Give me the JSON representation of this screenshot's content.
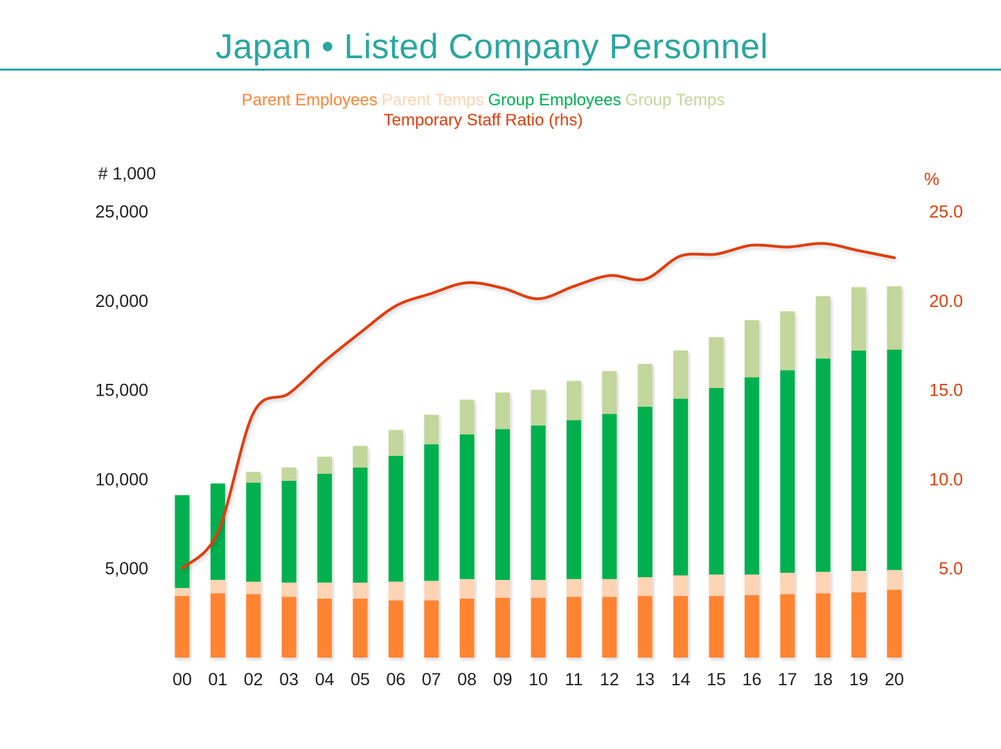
{
  "title": "Japan • Listed Company Personnel",
  "legend": {
    "parent_employees": "Parent Employees",
    "parent_temps": "Parent Temps",
    "group_employees": "Group Employees",
    "group_temps": "Group Temps",
    "ratio": "Temporary Staff Ratio (rhs)"
  },
  "colors": {
    "title": "#2aa6a0",
    "parent_employees": "#ff8432",
    "parent_temps": "#fdd4b4",
    "group_employees": "#00b050",
    "group_temps": "#c3d69b",
    "ratio": "#e03c0c"
  },
  "chart_data": {
    "type": "bar",
    "stacked": true,
    "title": "Japan • Listed Company Personnel",
    "ylabel_left": "# 1,000",
    "ylabel_right": "%",
    "ylim_left": [
      0,
      25000
    ],
    "ylim_right": [
      0,
      25
    ],
    "yticks_left": [
      "5,000",
      "10,000",
      "15,000",
      "20,000",
      "25,000"
    ],
    "yticks_right": [
      "5.0",
      "10.0",
      "15.0",
      "20.0",
      "25.0"
    ],
    "categories": [
      "00",
      "01",
      "02",
      "03",
      "04",
      "05",
      "06",
      "07",
      "08",
      "09",
      "10",
      "11",
      "12",
      "13",
      "14",
      "15",
      "16",
      "17",
      "18",
      "19",
      "20"
    ],
    "series": [
      {
        "name": "Parent Employees",
        "type": "bar",
        "values": [
          3450,
          3600,
          3550,
          3400,
          3300,
          3300,
          3200,
          3200,
          3300,
          3350,
          3350,
          3400,
          3400,
          3450,
          3450,
          3450,
          3500,
          3550,
          3600,
          3650,
          3800
        ]
      },
      {
        "name": "Parent Temps",
        "type": "bar",
        "values": [
          450,
          750,
          700,
          800,
          900,
          900,
          1050,
          1100,
          1100,
          1000,
          1000,
          1000,
          1000,
          1050,
          1150,
          1200,
          1150,
          1200,
          1200,
          1200,
          1100
        ]
      },
      {
        "name": "Group Employees",
        "type": "bar",
        "values": [
          5200,
          5400,
          5550,
          5700,
          6100,
          6450,
          7050,
          7650,
          8100,
          8450,
          8650,
          8900,
          9250,
          9550,
          9900,
          10450,
          11050,
          11350,
          11950,
          12350,
          12350
        ]
      },
      {
        "name": "Group Temps",
        "type": "bar",
        "values": [
          0,
          0,
          600,
          750,
          950,
          1200,
          1450,
          1650,
          1950,
          2050,
          2000,
          2200,
          2400,
          2400,
          2700,
          2850,
          3200,
          3300,
          3500,
          3550,
          3550
        ]
      },
      {
        "name": "Temporary Staff Ratio (rhs)",
        "type": "line",
        "axis": "right",
        "values": [
          5.0,
          7.0,
          13.7,
          14.8,
          16.6,
          18.2,
          19.7,
          20.4,
          21.0,
          20.7,
          20.1,
          20.8,
          21.4,
          21.2,
          22.5,
          22.6,
          23.1,
          23.0,
          23.2,
          22.8,
          22.4
        ]
      }
    ]
  }
}
